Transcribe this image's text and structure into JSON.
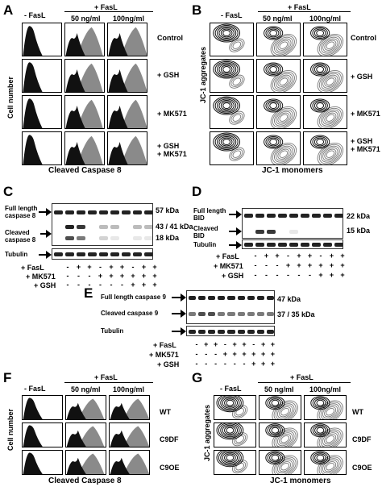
{
  "panels": {
    "A": {
      "letter": "A",
      "col_headers": [
        "- FasL",
        "+ FasL",
        "50 ng/ml",
        "100ng/ml"
      ],
      "rows": [
        "Control",
        "+ GSH",
        "+ MK571",
        "+ GSH",
        "+ MK571"
      ],
      "ylabel": "Cell number",
      "xlabel": "Cleaved Caspase 8"
    },
    "B": {
      "letter": "B",
      "col_headers": [
        "- FasL",
        "+ FasL",
        "50 ng/ml",
        "100ng/ml"
      ],
      "rows": [
        "Control",
        "+ GSH",
        "+ MK571",
        "+ GSH",
        "+ MK571"
      ],
      "ylabel": "JC-1 aggregates",
      "xlabel": "JC-1 monomers"
    },
    "C": {
      "letter": "C",
      "left_labels": [
        "Full length",
        "caspase 8",
        "Cleaved",
        "caspase 8",
        "Tubulin"
      ],
      "right_labels": [
        "57 kDa",
        "43 / 41 kDa",
        "18 kDa"
      ],
      "treatments": [
        "+ FasL",
        "+ MK571",
        "+ GSH"
      ],
      "signs": [
        [
          "-",
          "+",
          "+",
          "-",
          "+",
          "+",
          "-",
          "+",
          "+"
        ],
        [
          "-",
          "-",
          "-",
          "+",
          "+",
          "+",
          "+",
          "+",
          "+"
        ],
        [
          "-",
          "-",
          "-",
          "-",
          "-",
          "-",
          "+",
          "+",
          "+"
        ]
      ]
    },
    "D": {
      "letter": "D",
      "left_labels": [
        "Full length",
        "BID",
        "Cleaved",
        "BID",
        "Tubulin"
      ],
      "right_labels": [
        "22 kDa",
        "15 kDa"
      ],
      "treatments": [
        "+ FasL",
        "+ MK571",
        "+ GSH"
      ],
      "signs": [
        [
          "-",
          "+",
          "+",
          "-",
          "+",
          "+",
          "-",
          "+",
          "+"
        ],
        [
          "-",
          "-",
          "-",
          "+",
          "+",
          "+",
          "+",
          "+",
          "+"
        ],
        [
          "-",
          "-",
          "-",
          "-",
          "-",
          "-",
          "+",
          "+",
          "+"
        ]
      ]
    },
    "E": {
      "letter": "E",
      "left_labels": [
        "Full length caspase 9",
        "Cleaved  caspase 9",
        "Tubulin"
      ],
      "right_labels": [
        "47 kDa",
        "37 / 35 kDa"
      ],
      "treatments": [
        "+ FasL",
        "+ MK571",
        "+ GSH"
      ],
      "signs": [
        [
          "-",
          "+",
          "+",
          "-",
          "+",
          "+",
          "-",
          "+",
          "+"
        ],
        [
          "-",
          "-",
          "-",
          "+",
          "+",
          "+",
          "+",
          "+",
          "+"
        ],
        [
          "-",
          "-",
          "-",
          "-",
          "-",
          "-",
          "+",
          "+",
          "+"
        ]
      ]
    },
    "F": {
      "letter": "F",
      "col_headers": [
        "- FasL",
        "+ FasL",
        "50 ng/ml",
        "100ng/ml"
      ],
      "rows": [
        "WT",
        "C9DF",
        "C9OE"
      ],
      "ylabel": "Cell number",
      "xlabel": "Cleaved Caspase 8"
    },
    "G": {
      "letter": "G",
      "col_headers": [
        "- FasL",
        "+ FasL",
        "50 ng/ml",
        "100ng/ml"
      ],
      "rows": [
        "WT",
        "C9DF",
        "C9OE"
      ],
      "ylabel": "JC-1 aggregates",
      "xlabel": "JC-1 monomers"
    }
  },
  "colors": {
    "histogram_black": "#111111",
    "histogram_gray": "#8a8a8a",
    "contour_gray": "#7a7a7a"
  }
}
